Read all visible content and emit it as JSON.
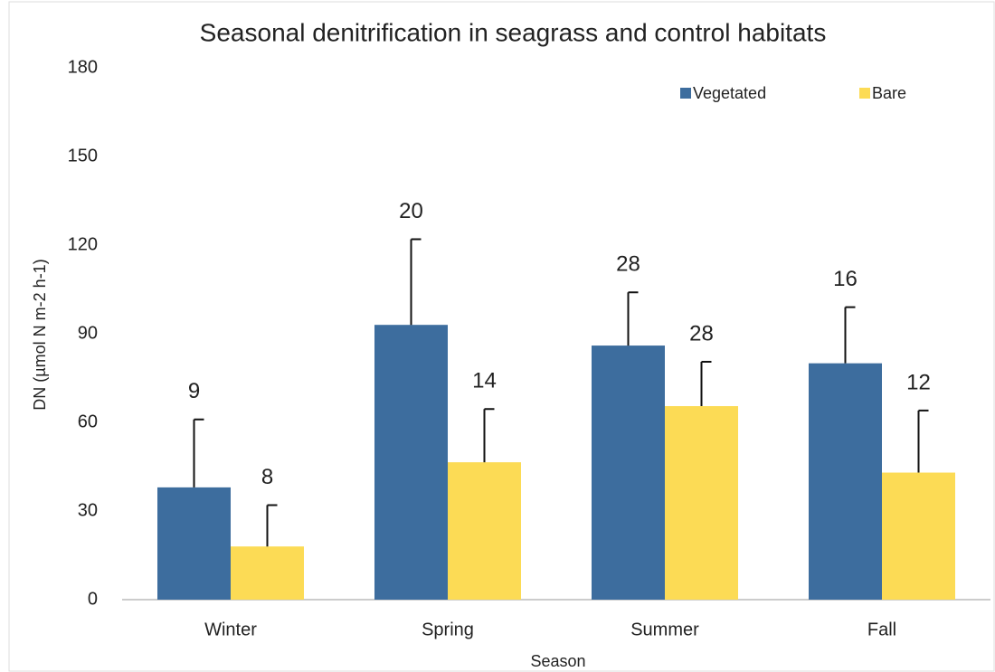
{
  "chart_data": {
    "type": "bar",
    "title": "Seasonal denitrification in seagrass and control habitats",
    "x_label": "Season",
    "y_label": "DN (µmol N m-2 h-1)",
    "categories": [
      "Winter",
      "Spring",
      "Summer",
      "Fall"
    ],
    "series": [
      {
        "name": "Vegetated",
        "color": "#3d6d9e",
        "values": [
          38,
          93,
          86,
          80
        ],
        "errors": [
          23,
          29,
          18,
          19
        ],
        "sample_sizes": [
          9,
          20,
          28,
          16
        ]
      },
      {
        "name": "Bare",
        "color": "#fcdb55",
        "values": [
          18,
          46.5,
          65.5,
          43
        ],
        "errors": [
          14,
          18,
          15,
          21
        ],
        "sample_sizes": [
          8,
          14,
          28,
          12
        ]
      }
    ],
    "ylim": [
      0,
      180
    ],
    "yticks": [
      0,
      30,
      60,
      90,
      120,
      150,
      180
    ],
    "grid": false,
    "legend": "top-right"
  }
}
